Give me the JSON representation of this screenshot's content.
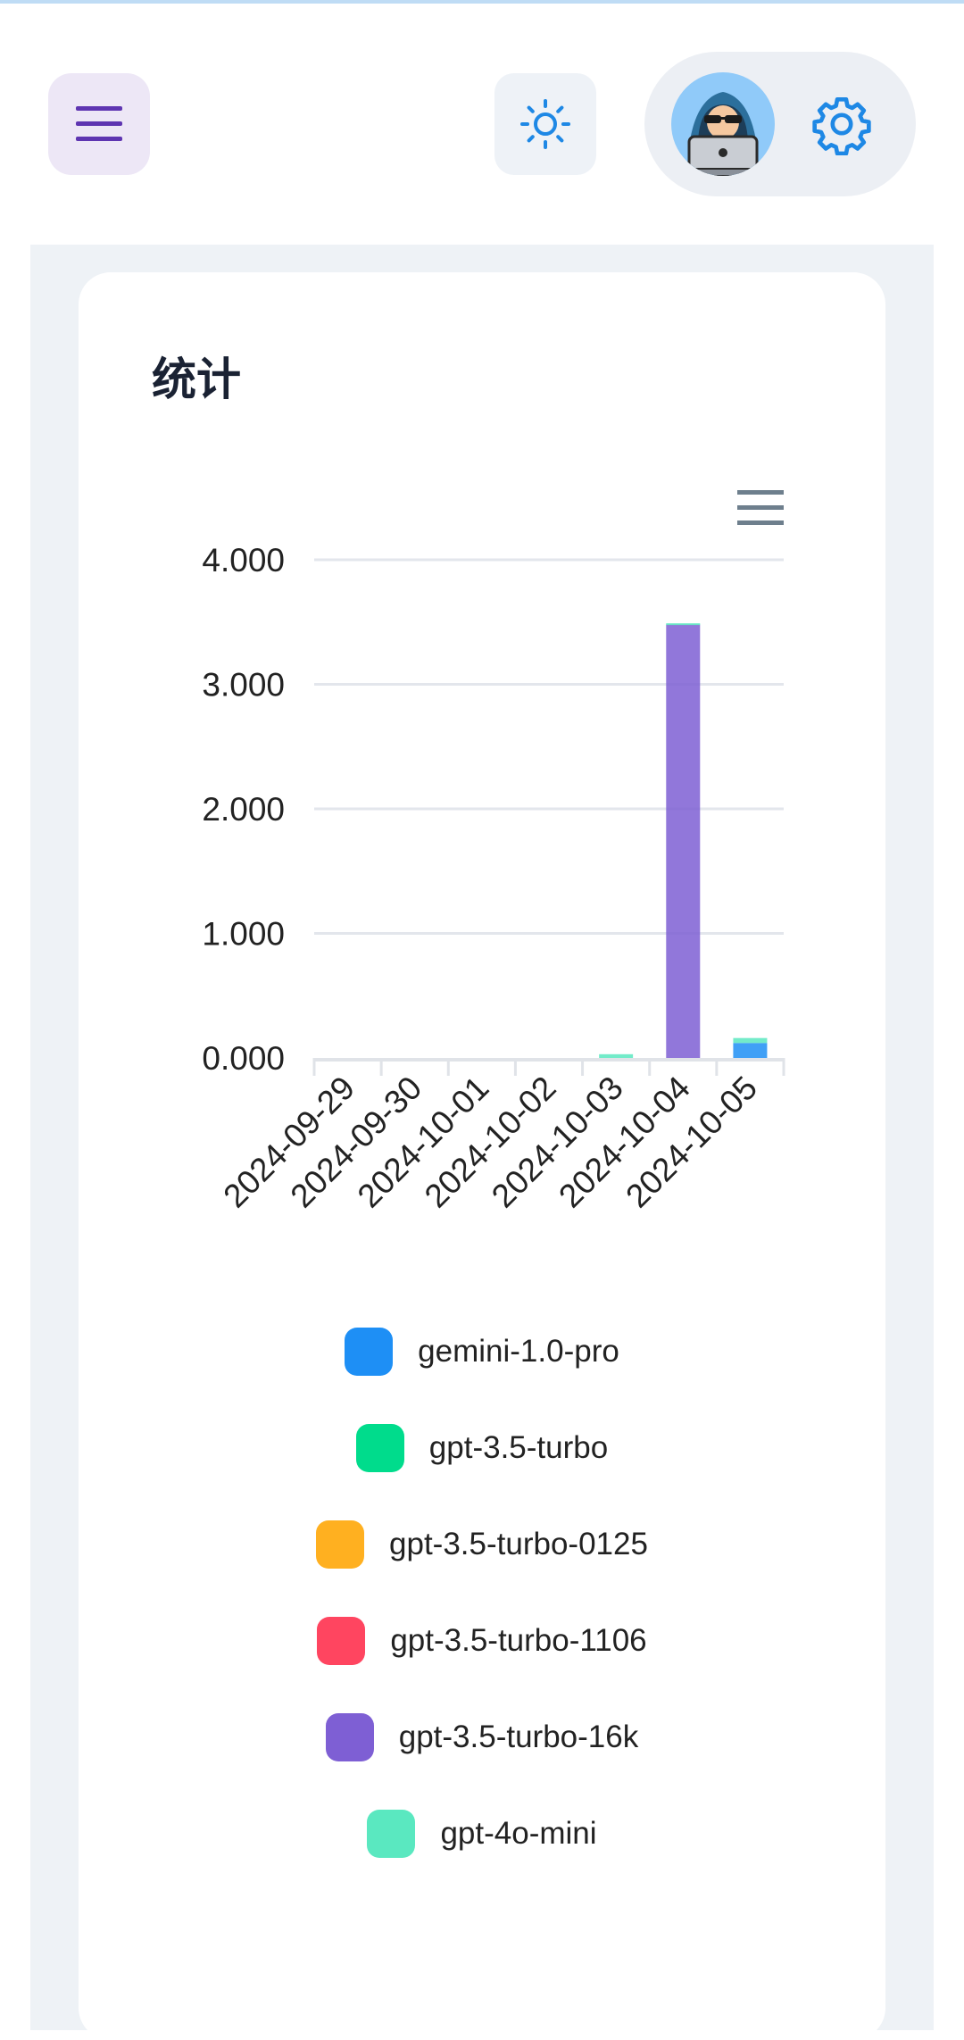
{
  "header": {
    "menu_icon": "hamburger-menu-icon",
    "theme_icon": "sun-icon",
    "avatar_icon": "hacker-avatar",
    "settings_icon": "gear-icon"
  },
  "card": {
    "title": "统计"
  },
  "colors": {
    "accent": "#1e88e5",
    "menu_button_bg": "#ede7f6",
    "menu_icon": "#5e35b1"
  },
  "chart_data": {
    "type": "bar",
    "stacked": true,
    "categories": [
      "2024-09-29",
      "2024-09-30",
      "2024-10-01",
      "2024-10-02",
      "2024-10-03",
      "2024-10-04",
      "2024-10-05"
    ],
    "y_ticks": [
      "0.000",
      "1.000",
      "2.000",
      "3.000",
      "4.000"
    ],
    "ylim": [
      0,
      4
    ],
    "grid": true,
    "legend_position": "bottom",
    "series": [
      {
        "name": "gemini-1.0-pro",
        "color": "#1e8ff5",
        "values": [
          0,
          0,
          0,
          0,
          0,
          0,
          0.12
        ]
      },
      {
        "name": "gpt-3.5-turbo",
        "color": "#00dc8c",
        "values": [
          0,
          0,
          0,
          0,
          0,
          0,
          0
        ]
      },
      {
        "name": "gpt-3.5-turbo-0125",
        "color": "#ffb020",
        "values": [
          0,
          0,
          0,
          0,
          0,
          0,
          0
        ]
      },
      {
        "name": "gpt-3.5-turbo-1106",
        "color": "#ff4560",
        "values": [
          0,
          0,
          0,
          0,
          0,
          0,
          0
        ]
      },
      {
        "name": "gpt-3.5-turbo-16k",
        "color": "#7e5fd4",
        "values": [
          0,
          0,
          0,
          0,
          0,
          3.48,
          0
        ]
      },
      {
        "name": "gpt-4o-mini",
        "color": "#5ae8c0",
        "values": [
          0,
          0,
          0,
          0,
          0.03,
          0.01,
          0.04
        ]
      }
    ]
  }
}
